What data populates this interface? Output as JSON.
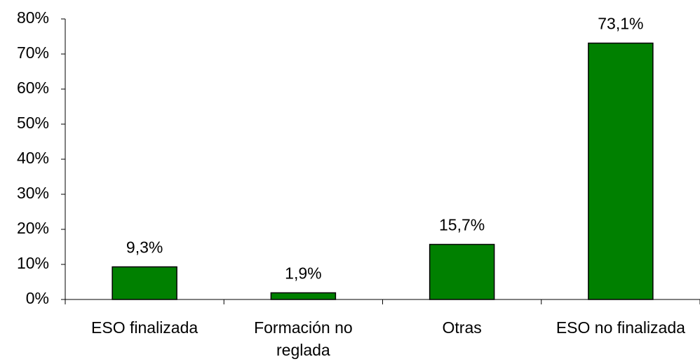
{
  "chart_data": {
    "type": "bar",
    "categories": [
      "ESO finalizada",
      "Formación no reglada",
      "Otras",
      "ESO no finalizada"
    ],
    "values": [
      9.3,
      1.9,
      15.7,
      73.1
    ],
    "value_labels": [
      "9,3%",
      "1,9%",
      "15,7%",
      "73,1%"
    ],
    "color": "#008000",
    "ylim": [
      0,
      80
    ],
    "yticks": [
      {
        "value": 0,
        "label": "0%"
      },
      {
        "value": 10,
        "label": "10%"
      },
      {
        "value": 20,
        "label": "20%"
      },
      {
        "value": 30,
        "label": "30%"
      },
      {
        "value": 40,
        "label": "40%"
      },
      {
        "value": 50,
        "label": "50%"
      },
      {
        "value": 60,
        "label": "60%"
      },
      {
        "value": 70,
        "label": "70%"
      },
      {
        "value": 80,
        "label": "80%"
      }
    ],
    "grid": false
  }
}
